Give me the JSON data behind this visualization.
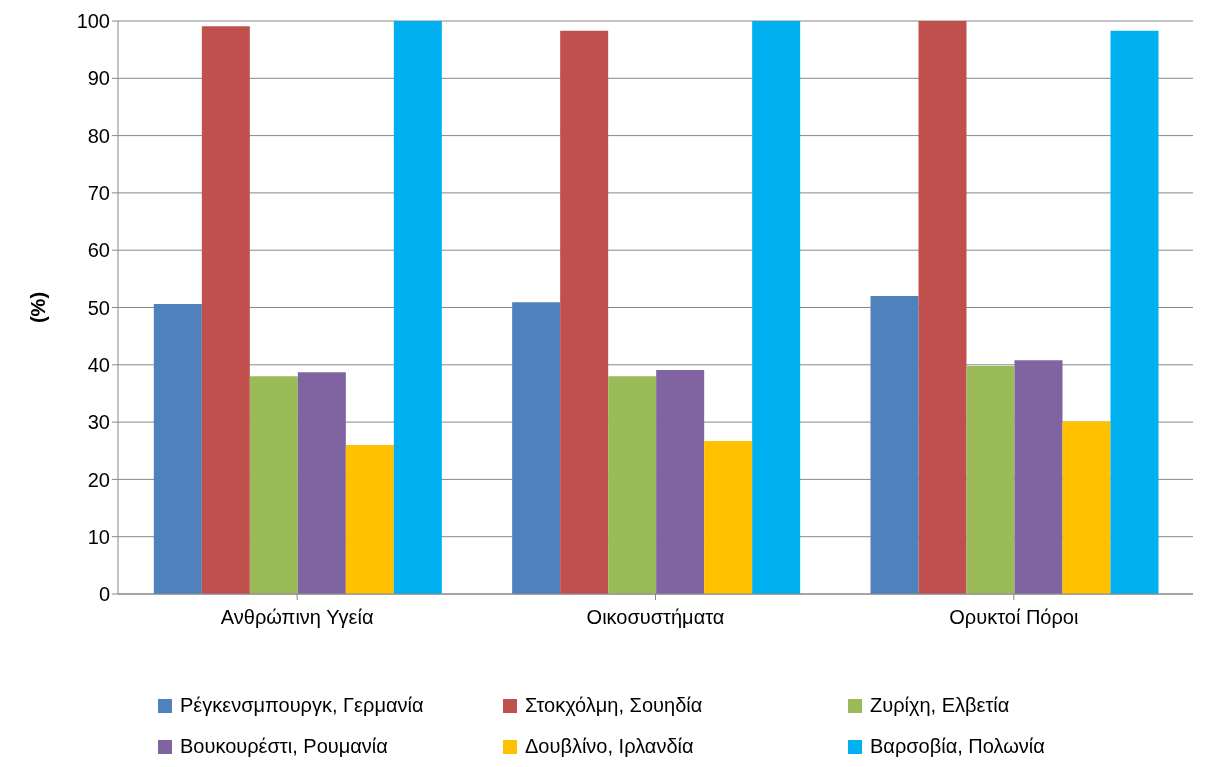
{
  "chart_data": {
    "type": "bar",
    "ylabel": "(%)",
    "categories": [
      "Ανθρώπινη Υγεία",
      "Οικοσυστήματα",
      "Ορυκτοί Πόροι"
    ],
    "series": [
      {
        "name": "Ρέγκενσμπουργκ, Γερμανία",
        "color": "#4f81bd",
        "values": [
          50.6,
          50.9,
          52.0
        ]
      },
      {
        "name": "Στοκχόλμη, Σουηδία",
        "color": "#c0504d",
        "values": [
          99.1,
          98.3,
          100
        ]
      },
      {
        "name": "Ζυρίχη, Ελβετία",
        "color": "#9bbb59",
        "values": [
          38.0,
          38.0,
          39.8
        ]
      },
      {
        "name": "Βουκουρέστι, Ρουμανία",
        "color": "#8064a2",
        "values": [
          38.7,
          39.1,
          40.8
        ]
      },
      {
        "name": "Δουβλίνο, Ιρλανδία",
        "color": "#ffc000",
        "values": [
          26.0,
          26.7,
          30.1
        ]
      },
      {
        "name": "Βαρσοβία, Πολωνία",
        "color": "#00b0f0",
        "values": [
          100,
          100,
          98.3
        ]
      }
    ],
    "ylim": [
      0,
      100
    ],
    "yticks": [
      0,
      10,
      20,
      30,
      40,
      50,
      60,
      70,
      80,
      90,
      100
    ],
    "grid": "y",
    "legend": "bottom"
  }
}
